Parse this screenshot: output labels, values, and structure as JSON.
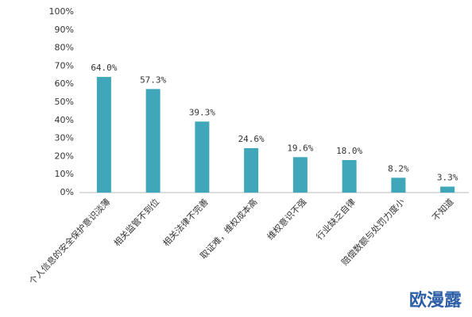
{
  "chart_data": {
    "type": "bar",
    "categories": [
      "个人信息的安全保护意识淡薄",
      "相关监管不到位",
      "相关法律不完善",
      "取证难，维权成本高",
      "维权意识不强",
      "行业缺乏自律",
      "赔偿数额与处罚力度小",
      "不知道"
    ],
    "values": [
      64.0,
      57.3,
      39.3,
      24.6,
      19.6,
      18.0,
      8.2,
      3.3
    ],
    "value_labels": [
      "64.0%",
      "57.3%",
      "39.3%",
      "24.6%",
      "19.6%",
      "18.0%",
      "8.2%",
      "3.3%"
    ],
    "color": "#3fa7b9",
    "ylim": [
      0,
      100
    ],
    "yticks": [
      {
        "value": 0,
        "label": "0%"
      },
      {
        "value": 10,
        "label": "10%"
      },
      {
        "value": 20,
        "label": "20%"
      },
      {
        "value": 30,
        "label": "30%"
      },
      {
        "value": 40,
        "label": "40%"
      },
      {
        "value": 50,
        "label": "50%"
      },
      {
        "value": 60,
        "label": "60%"
      },
      {
        "value": 70,
        "label": "70%"
      },
      {
        "value": 80,
        "label": "80%"
      },
      {
        "value": 90,
        "label": "90%"
      },
      {
        "value": 100,
        "label": "100%"
      }
    ],
    "grid": false
  },
  "watermark": "欧漫露"
}
